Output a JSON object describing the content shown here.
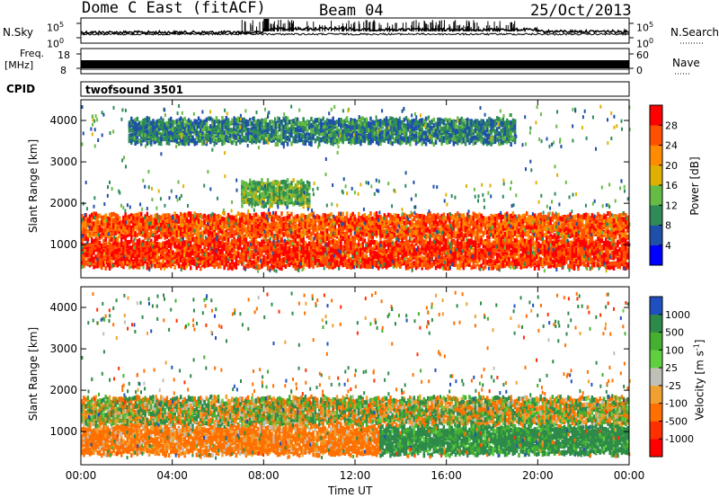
{
  "header": {
    "radar": "Dome C East (fitACF)",
    "beam": "Beam 04",
    "date": "25/Oct/2013"
  },
  "nsky_panel": {
    "left_label": "N.Sky",
    "right_label": "N.Search",
    "top_tick": "10^5",
    "bottom_tick": "10^0",
    "right_top_tick": "10^5",
    "right_bottom_tick": "10^0"
  },
  "freq_panel": {
    "left_label_1": "Freq.",
    "left_label_2": "[MHz]",
    "left_top_tick": "18",
    "left_bottom_tick": "8",
    "right_label": "Nave",
    "right_top_tick": "60",
    "right_bottom_tick": "0"
  },
  "cpid": {
    "label": "CPID",
    "value": "twofsound 3501"
  },
  "colors": {
    "power": [
      "#0000ff",
      "#1e50aa",
      "#2e8b57",
      "#66bb44",
      "#e0b000",
      "#ff8c00",
      "#ff5000",
      "#ff0000"
    ],
    "velocity": [
      "#2050c0",
      "#2d8a4a",
      "#45b030",
      "#60d040",
      "#c0c0b8",
      "#f0a030",
      "#ff7000",
      "#ff3000",
      "#ff0000"
    ]
  },
  "chart_data": [
    {
      "type": "heatmap",
      "panel": "power",
      "ylabel": "Slant Range [km]",
      "xlabel": "",
      "ylim": [
        200,
        4500
      ],
      "xlim": [
        "00:00",
        "24:00"
      ],
      "yticks": [
        "1000",
        "2000",
        "3000",
        "4000"
      ],
      "xticks": [
        "00:00",
        "04:00",
        "08:00",
        "12:00",
        "16:00",
        "20:00",
        "00:00"
      ],
      "colorbar": {
        "label": "Power [dB]",
        "range": [
          0,
          32
        ],
        "ticks": [
          "4",
          "8",
          "12",
          "16",
          "20",
          "24",
          "28"
        ]
      },
      "bands": [
        {
          "start_h": 0,
          "end_h": 24,
          "range_min_km": 1200,
          "range_max_km": 1700,
          "power_db": 27
        },
        {
          "start_h": 0,
          "end_h": 24,
          "range_min_km": 500,
          "range_max_km": 1100,
          "power_db": 29
        },
        {
          "start_h": 2,
          "end_h": 19,
          "range_min_km": 3500,
          "range_max_km": 4000,
          "power_db": 10
        },
        {
          "start_h": 7,
          "end_h": 10,
          "range_min_km": 2000,
          "range_max_km": 2500,
          "power_db": 14
        }
      ]
    },
    {
      "type": "heatmap",
      "panel": "velocity",
      "ylabel": "Slant Range [km]",
      "xlabel": "Time UT",
      "ylim": [
        200,
        4500
      ],
      "xlim": [
        "00:00",
        "24:00"
      ],
      "yticks": [
        "1000",
        "2000",
        "3000",
        "4000"
      ],
      "xticks": [
        "00:00",
        "04:00",
        "08:00",
        "12:00",
        "16:00",
        "20:00",
        "00:00"
      ],
      "colorbar": {
        "label": "Velocity [m s^-1]",
        "ticks": [
          "1000",
          "500",
          "100",
          "25",
          "-25",
          "-100",
          "-500",
          "-1000"
        ]
      },
      "bands": [
        {
          "start_h": 0,
          "end_h": 24,
          "range_min_km": 1200,
          "range_max_km": 1800,
          "velocity_ms": 0
        },
        {
          "start_h": 0,
          "end_h": 13,
          "range_min_km": 500,
          "range_max_km": 1100,
          "velocity_ms": -200
        },
        {
          "start_h": 13,
          "end_h": 24,
          "range_min_km": 500,
          "range_max_km": 1100,
          "velocity_ms": 200
        }
      ]
    }
  ]
}
